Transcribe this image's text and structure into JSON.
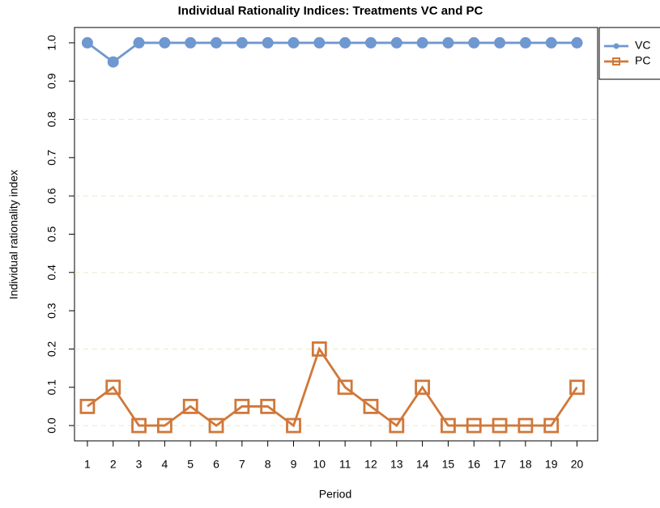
{
  "chart_data": {
    "type": "line",
    "title": "Individual Rationality Indices: Treatments VC and PC",
    "x_label": "Period",
    "y_label": "Individual rationality index",
    "x": [
      1,
      2,
      3,
      4,
      5,
      6,
      7,
      8,
      9,
      10,
      11,
      12,
      13,
      14,
      15,
      16,
      17,
      18,
      19,
      20
    ],
    "series": [
      {
        "name": "VC",
        "color": "#6f97d0",
        "marker": "circle",
        "values": [
          1,
          0.95,
          1,
          1,
          1,
          1,
          1,
          1,
          1,
          1,
          1,
          1,
          1,
          1,
          1,
          1,
          1,
          1,
          1,
          1
        ]
      },
      {
        "name": "PC",
        "color": "#d0783a",
        "marker": "square",
        "values": [
          0.05,
          0.1,
          0,
          0,
          0.05,
          0,
          0.05,
          0.05,
          0,
          0.2,
          0.1,
          0.05,
          0,
          0.1,
          0,
          0,
          0,
          0,
          0,
          0.1
        ]
      }
    ],
    "xlim": [
      0.5,
      20.8
    ],
    "xticks": [
      1,
      2,
      3,
      4,
      5,
      6,
      7,
      8,
      9,
      10,
      11,
      12,
      13,
      14,
      15,
      16,
      17,
      18,
      19,
      20
    ],
    "ylim": [
      -0.04,
      1.04
    ],
    "yticks": [
      {
        "value": 0,
        "label": "0.0"
      },
      0.1,
      0.2,
      0.3,
      0.4,
      0.5,
      0.6,
      0.7,
      0.8,
      0.9,
      {
        "value": 1,
        "label": "1.0"
      }
    ],
    "grid_y": [
      0,
      0.2,
      0.4,
      0.6,
      0.8
    ],
    "legend": "top-right-outside"
  }
}
